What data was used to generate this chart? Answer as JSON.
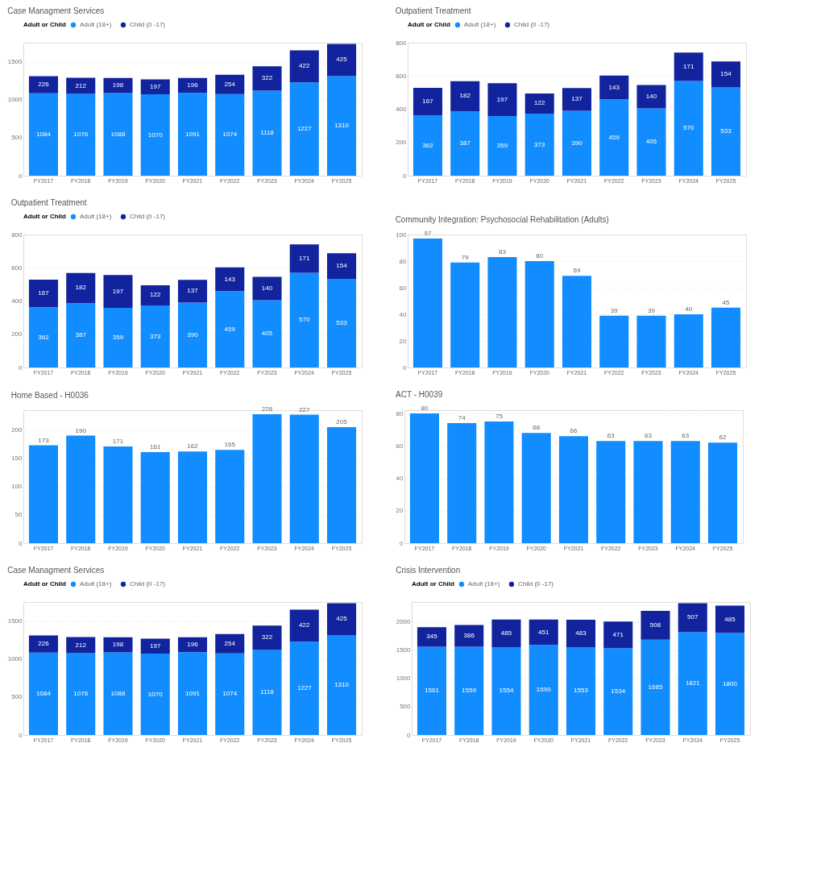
{
  "chart_data": [
    {
      "type": "bar",
      "title": "Case Managment Services",
      "legend_title": "Adult or Child",
      "legend": "top left",
      "stacked": true,
      "data_labels": true,
      "grid": "y",
      "categories": [
        "FY2017",
        "FY2018",
        "FY2019",
        "FY2020",
        "FY2021",
        "FY2022",
        "FY2023",
        "FY2024",
        "FY2025"
      ],
      "series": [
        {
          "name": "Adult (18+)",
          "color": "#118dff",
          "values": [
            1084,
            1076,
            1088,
            1070,
            1091,
            1074,
            1118,
            1227,
            1310
          ]
        },
        {
          "name": "Child (0 -17)",
          "color": "#12239e",
          "values": [
            226,
            212,
            198,
            197,
            196,
            254,
            322,
            422,
            425
          ]
        }
      ],
      "ylim": [
        0,
        1750
      ],
      "yticks": [
        0,
        500,
        1000,
        1500
      ]
    },
    {
      "type": "bar",
      "title": "Outpatient Treatment",
      "legend_title": "Adult or Child",
      "legend": "top left",
      "stacked": true,
      "data_labels": true,
      "grid": "y",
      "categories": [
        "FY2017",
        "FY2018",
        "FY2019",
        "FY2020",
        "FY2021",
        "FY2022",
        "FY2023",
        "FY2024",
        "FY2025"
      ],
      "series": [
        {
          "name": "Adult (18+)",
          "color": "#118dff",
          "values": [
            362,
            387,
            359,
            373,
            390,
            459,
            405,
            570,
            533
          ]
        },
        {
          "name": "Child (0 -17)",
          "color": "#12239e",
          "values": [
            167,
            182,
            197,
            122,
            137,
            143,
            140,
            171,
            154
          ]
        }
      ],
      "ylim": [
        0,
        800
      ],
      "yticks": [
        0,
        200,
        400,
        600,
        800
      ]
    },
    {
      "type": "bar",
      "title": "Outpatient Treatment",
      "legend_title": "Adult or Child",
      "legend": "top left",
      "stacked": true,
      "data_labels": true,
      "grid": "y",
      "categories": [
        "FY2017",
        "FY2018",
        "FY2019",
        "FY2020",
        "FY2021",
        "FY2022",
        "FY2023",
        "FY2024",
        "FY2025"
      ],
      "series": [
        {
          "name": "Adult (18+)",
          "color": "#118dff",
          "values": [
            362,
            387,
            359,
            373,
            390,
            459,
            405,
            570,
            533
          ]
        },
        {
          "name": "Child (0 -17)",
          "color": "#12239e",
          "values": [
            167,
            182,
            197,
            122,
            137,
            143,
            140,
            171,
            154
          ]
        }
      ],
      "ylim": [
        0,
        800
      ],
      "yticks": [
        0,
        200,
        400,
        600,
        800
      ]
    },
    {
      "type": "bar",
      "title": "Community Integration: Psychosocial Rehabilitation (Adults)",
      "data_labels": true,
      "grid": "y",
      "categories": [
        "FY2017",
        "FY2018",
        "FY2019",
        "FY2020",
        "FY2021",
        "FY2022",
        "FY2023",
        "FY2024",
        "FY2025"
      ],
      "series": [
        {
          "color": "#118dff",
          "values": [
            97,
            79,
            83,
            80,
            69,
            39,
            39,
            40,
            45
          ]
        }
      ],
      "ylim": [
        0,
        100
      ],
      "yticks": [
        0,
        20,
        40,
        60,
        80,
        100
      ]
    },
    {
      "type": "bar",
      "title": "Home Based - H0036",
      "data_labels": true,
      "grid": "y",
      "categories": [
        "FY2017",
        "FY2018",
        "FY2019",
        "FY2020",
        "FY2021",
        "FY2022",
        "FY2023",
        "FY2024",
        "FY2025"
      ],
      "series": [
        {
          "color": "#118dff",
          "values": [
            173,
            190,
            171,
            161,
            162,
            165,
            228,
            227,
            205
          ]
        }
      ],
      "ylim": [
        0,
        235
      ],
      "yticks": [
        0,
        50,
        100,
        150,
        200
      ]
    },
    {
      "type": "bar",
      "title": "ACT - H0039",
      "data_labels": true,
      "grid": "y",
      "categories": [
        "FY2017",
        "FY2018",
        "FY2019",
        "FY2020",
        "FY2021",
        "FY2022",
        "FY2023",
        "FY2024",
        "FY2025"
      ],
      "series": [
        {
          "color": "#118dff",
          "values": [
            80,
            74,
            75,
            68,
            66,
            63,
            63,
            63,
            62
          ]
        }
      ],
      "ylim": [
        0,
        82
      ],
      "yticks": [
        0,
        20,
        40,
        60,
        80
      ]
    },
    {
      "type": "bar",
      "title": "Case Managment Services",
      "legend_title": "Adult or Child",
      "legend": "top left",
      "stacked": true,
      "data_labels": true,
      "grid": "y",
      "categories": [
        "FY2017",
        "FY2018",
        "FY2019",
        "FY2020",
        "FY2021",
        "FY2022",
        "FY2023",
        "FY2024",
        "FY2025"
      ],
      "series": [
        {
          "name": "Adult (18+)",
          "color": "#118dff",
          "values": [
            1084,
            1076,
            1088,
            1070,
            1091,
            1074,
            1118,
            1227,
            1310
          ]
        },
        {
          "name": "Child (0 -17)",
          "color": "#12239e",
          "values": [
            226,
            212,
            198,
            197,
            196,
            254,
            322,
            422,
            425
          ]
        }
      ],
      "ylim": [
        0,
        1750
      ],
      "yticks": [
        0,
        500,
        1000,
        1500
      ]
    },
    {
      "type": "bar",
      "title": "Crisis Intervention",
      "legend_title": "Adult or Child",
      "legend": "top left",
      "stacked": true,
      "data_labels": true,
      "grid": "y",
      "categories": [
        "FY2017",
        "FY2018",
        "FY2019",
        "FY2020",
        "FY2021",
        "FY2022",
        "FY2023",
        "FY2024",
        "FY2025"
      ],
      "series": [
        {
          "name": "Adult (18+)",
          "color": "#118dff",
          "values": [
            1561,
            1559,
            1554,
            1590,
            1553,
            1534,
            1685,
            1821,
            1800
          ]
        },
        {
          "name": "Child (0 -17)",
          "color": "#12239e",
          "values": [
            345,
            386,
            485,
            451,
            483,
            471,
            508,
            507,
            485
          ]
        }
      ],
      "ylim": [
        0,
        2350
      ],
      "yticks": [
        0,
        500,
        1000,
        1500,
        2000
      ]
    }
  ]
}
